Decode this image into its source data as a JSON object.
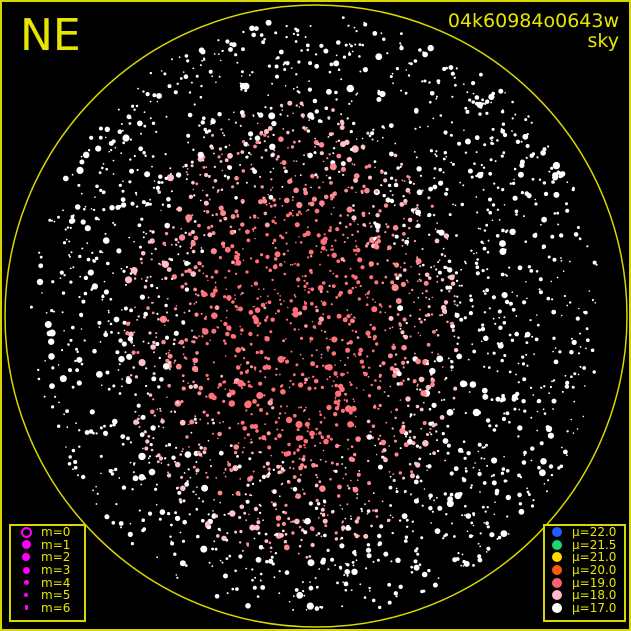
{
  "title": {
    "direction": "NE",
    "id": "04k60984o0643w",
    "subtitle": "sky"
  },
  "colors": {
    "frame": "#d8d800",
    "text": "#e6e600",
    "magnitude_symbol": "#ff00ff"
  },
  "magnitude_legend": [
    {
      "label": "m=0",
      "symbol": "ring"
    },
    {
      "label": "m=1",
      "symbol": "dot"
    },
    {
      "label": "m=2",
      "symbol": "dot"
    },
    {
      "label": "m=3",
      "symbol": "dot"
    },
    {
      "label": "m=4",
      "symbol": "dot"
    },
    {
      "label": "m=5",
      "symbol": "dot"
    },
    {
      "label": "m=6",
      "symbol": "dot"
    }
  ],
  "brightness_legend": [
    {
      "label": "μ=22.0",
      "color": "#1e5cff"
    },
    {
      "label": "μ=21.5",
      "color": "#1ed66a"
    },
    {
      "label": "μ=21.0",
      "color": "#ffd800"
    },
    {
      "label": "μ=20.0",
      "color": "#ff5a10"
    },
    {
      "label": "μ=19.0",
      "color": "#ff6070"
    },
    {
      "label": "μ=18.0",
      "color": "#ffb8c8"
    },
    {
      "label": "μ=17.0",
      "color": "#ffffff"
    }
  ]
}
